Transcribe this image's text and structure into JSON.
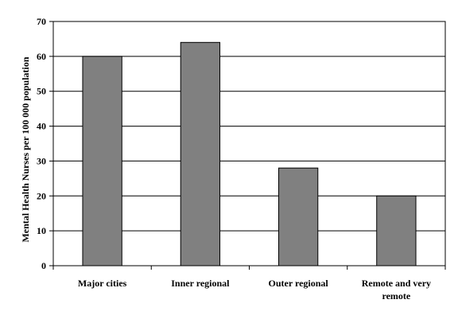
{
  "chart_data": {
    "type": "bar",
    "title": "",
    "xlabel": "",
    "ylabel": "Mental Health Nurses per 100 000 population",
    "categories": [
      "Major cities",
      "Inner regional",
      "Outer regional",
      "Remote and very remote"
    ],
    "category_lines": [
      [
        "Major cities"
      ],
      [
        "Inner regional"
      ],
      [
        "Outer regional"
      ],
      [
        "Remote and very",
        "remote"
      ]
    ],
    "values": [
      60,
      64,
      28,
      20
    ],
    "ylim": [
      0,
      70
    ],
    "yticks": [
      0,
      10,
      20,
      30,
      40,
      50,
      60,
      70
    ],
    "grid": true,
    "legend": "none",
    "bar_color": "#808080",
    "bar_edge_color": "#000000"
  }
}
